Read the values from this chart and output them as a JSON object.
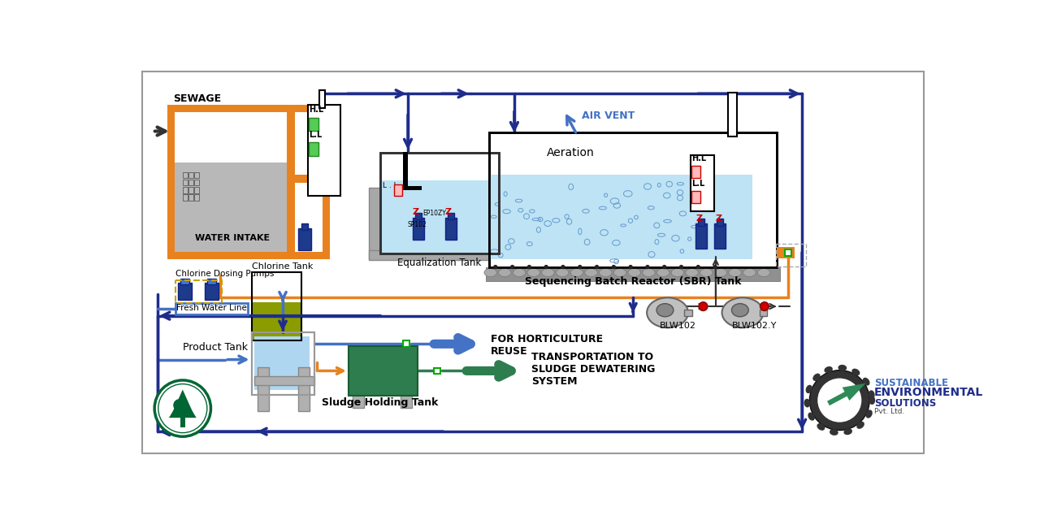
{
  "bg_color": "#ffffff",
  "colors": {
    "orange": "#E8821E",
    "dark_blue": "#1E2D8C",
    "blue": "#4472C4",
    "light_blue": "#AED6F1",
    "sky_blue": "#BDE3F5",
    "gray": "#A0A0A0",
    "light_gray": "#C8C8C8",
    "dark_gray": "#777777",
    "sewage_fill": "#B8B8B8",
    "green_tank": "#2E7D4F",
    "yellow_green": "#8B9C00",
    "red": "#CC0000",
    "dashed_yellow": "#C8A000",
    "pump_blue": "#1E3A8A",
    "arrow_green": "#2E7D4F",
    "blower_gray": "#909090",
    "pipe_blue": "#1E2D8C"
  },
  "labels": {
    "sewage": "SEWAGE",
    "water_intake": "WATER INTAKE",
    "eq_tank": "Equalization Tank",
    "sbr_tank": "Sequencing Batch Reactor (SBR) Tank",
    "aeration": "Aeration",
    "air_vent": "AIR VENT",
    "hl": "H.L",
    "ll": "L.L",
    "chlorine_tank": "Chlorine Tank",
    "chlorine_pumps": "Chlorine Dosing Pumps",
    "fresh_water": "Fresh Water Line",
    "product_tank": "Product Tank",
    "sludge_tank": "Sludge Holding Tank",
    "horticulture": "FOR HORTICULTURE\nREUSE",
    "transportation": "TRANSPORTATION TO\nSLUDGE DEWATERING\nSYSTEM",
    "blw102": "BLW102",
    "blw102y": "BLW102.Y",
    "sp102": "SP102",
    "ep10zy": "EP10ZY",
    "ll2": "L . L"
  }
}
